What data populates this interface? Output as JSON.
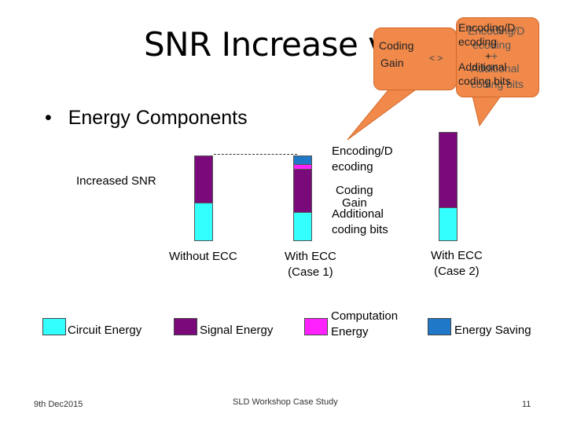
{
  "title": "SNR Increase v/s ECC",
  "callout_small": {
    "line1": "Coding",
    "line2": "Gain",
    "arrows": "< >"
  },
  "callout_large": {
    "back_lines": [
      "Encoding/D",
      "ecoding",
      "+",
      "Additional",
      "coding bits"
    ],
    "front_lines": [
      "Encoding/D",
      "ecoding",
      "+",
      "Additional",
      "coding bits"
    ]
  },
  "bullet": "Energy Components",
  "increased_snr": "Increased SNR",
  "annotations": {
    "encoding": [
      "Encoding/D",
      "ecoding"
    ],
    "coding_gain": [
      "Coding",
      "Gain"
    ],
    "additional": [
      "Additional",
      "coding bits"
    ]
  },
  "bar_labels": {
    "without_ecc": "Without ECC",
    "with_ecc_1": [
      "With ECC",
      "(Case 1)"
    ],
    "with_ecc_2": [
      "With ECC",
      "(Case 2)"
    ]
  },
  "legend": {
    "circuit": "Circuit Energy",
    "signal": "Signal Energy",
    "computation": [
      "Computation",
      "Energy"
    ],
    "saving": "Energy Saving"
  },
  "colors": {
    "circuit": "#33ffff",
    "signal": "#7a0a7a",
    "computation": "#ff22ff",
    "saving": "#1f78c8",
    "callout": "#f0894a"
  },
  "footer": {
    "date": "9th Dec2015",
    "center": "SLD Workshop Case Study",
    "page": "11"
  }
}
